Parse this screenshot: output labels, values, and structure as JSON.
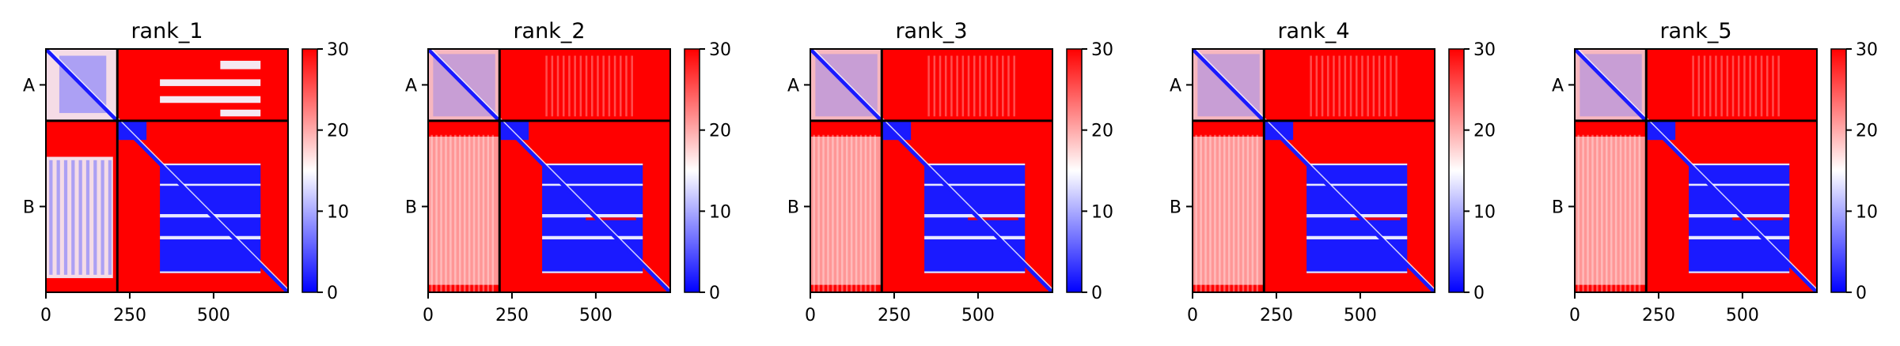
{
  "chart_data": [
    {
      "type": "heatmap",
      "title": "rank_1",
      "xlabel": "",
      "ylabel": "",
      "x_ticks": [
        0,
        250,
        500
      ],
      "y_tick_labels": [
        "A",
        "B"
      ],
      "xlim": [
        0,
        722
      ],
      "chain_boundary": 213,
      "colorbar": {
        "ticks": [
          0,
          10,
          20,
          30
        ],
        "range": [
          0,
          30
        ],
        "colors": [
          "#0000ff",
          "#ffffff",
          "#ff0000"
        ]
      },
      "variant": "A"
    },
    {
      "type": "heatmap",
      "title": "rank_2",
      "xlabel": "",
      "ylabel": "",
      "x_ticks": [
        0,
        250,
        500
      ],
      "y_tick_labels": [
        "A",
        "B"
      ],
      "xlim": [
        0,
        722
      ],
      "chain_boundary": 213,
      "colorbar": {
        "ticks": [
          0,
          10,
          20,
          30
        ],
        "range": [
          0,
          30
        ],
        "colors": [
          "#0000ff",
          "#ffffff",
          "#ff0000"
        ]
      },
      "variant": "B"
    },
    {
      "type": "heatmap",
      "title": "rank_3",
      "xlabel": "",
      "ylabel": "",
      "x_ticks": [
        0,
        250,
        500
      ],
      "y_tick_labels": [
        "A",
        "B"
      ],
      "xlim": [
        0,
        722
      ],
      "chain_boundary": 213,
      "colorbar": {
        "ticks": [
          0,
          10,
          20,
          30
        ],
        "range": [
          0,
          30
        ],
        "colors": [
          "#0000ff",
          "#ffffff",
          "#ff0000"
        ]
      },
      "variant": "B"
    },
    {
      "type": "heatmap",
      "title": "rank_4",
      "xlabel": "",
      "ylabel": "",
      "x_ticks": [
        0,
        250,
        500
      ],
      "y_tick_labels": [
        "A",
        "B"
      ],
      "xlim": [
        0,
        722
      ],
      "chain_boundary": 213,
      "colorbar": {
        "ticks": [
          0,
          10,
          20,
          30
        ],
        "range": [
          0,
          30
        ],
        "colors": [
          "#0000ff",
          "#ffffff",
          "#ff0000"
        ]
      },
      "variant": "B"
    },
    {
      "type": "heatmap",
      "title": "rank_5",
      "xlabel": "",
      "ylabel": "",
      "x_ticks": [
        0,
        250,
        500
      ],
      "y_tick_labels": [
        "A",
        "B"
      ],
      "xlim": [
        0,
        722
      ],
      "chain_boundary": 213,
      "colorbar": {
        "ticks": [
          0,
          10,
          20,
          30
        ],
        "range": [
          0,
          30
        ],
        "colors": [
          "#0000ff",
          "#ffffff",
          "#ff0000"
        ]
      },
      "variant": "B"
    }
  ]
}
